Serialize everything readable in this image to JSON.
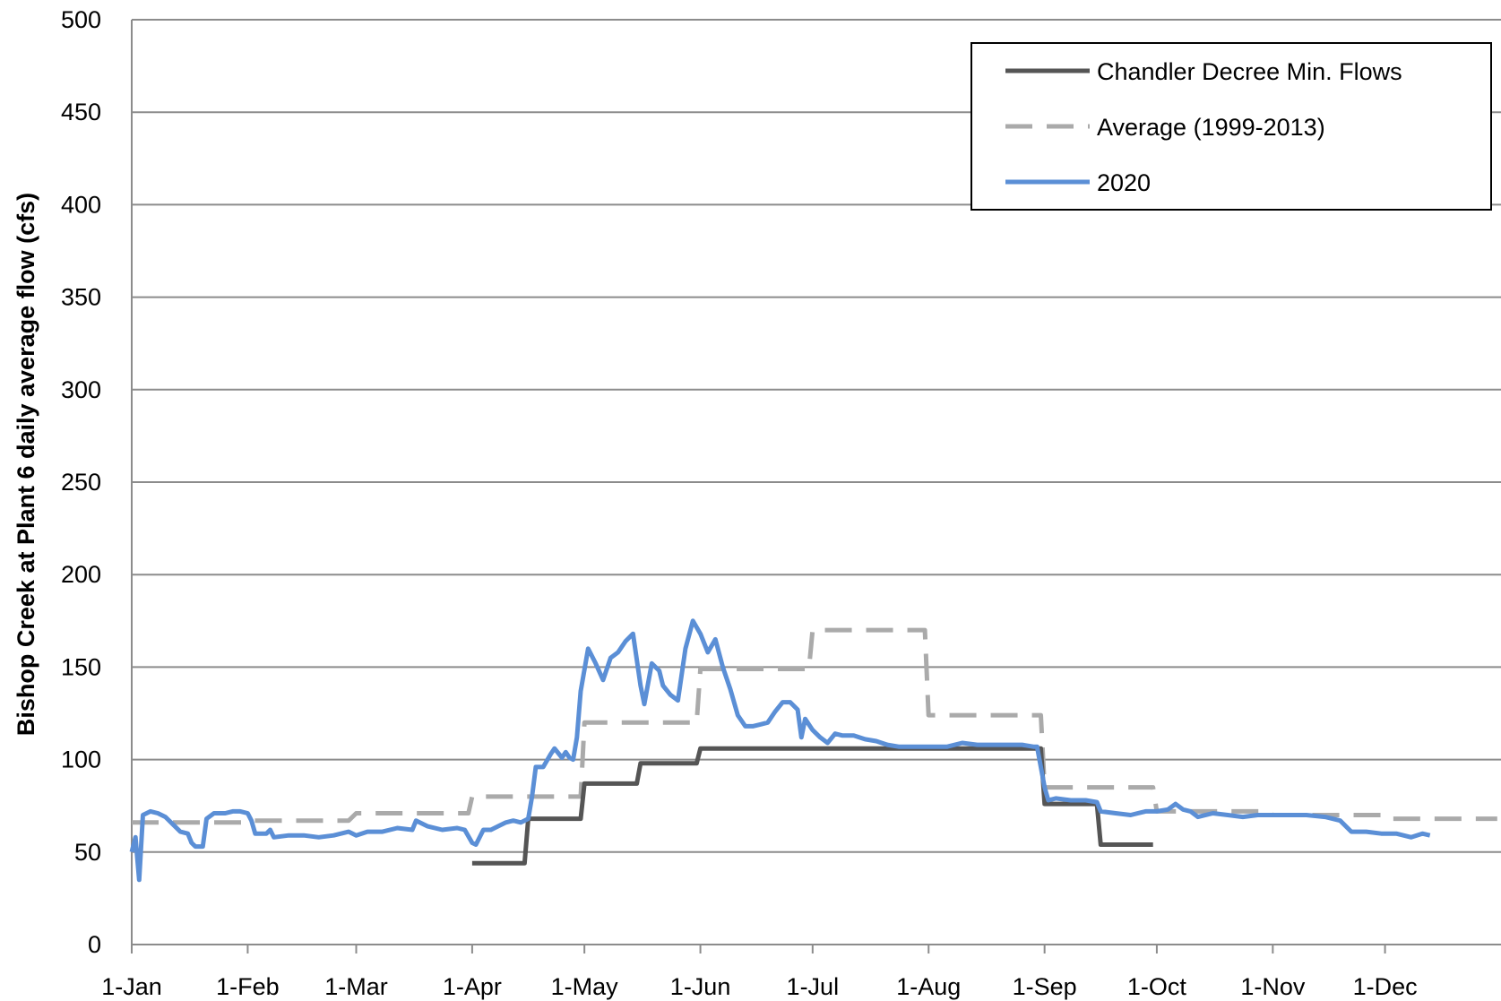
{
  "chart_data": {
    "type": "line",
    "title": "",
    "xlabel": "",
    "ylabel": "Bishop Creek at Plant 6 daily average flow (cfs)",
    "ylim": [
      0,
      500
    ],
    "yticks": [
      0,
      50,
      100,
      150,
      200,
      250,
      300,
      350,
      400,
      450,
      500
    ],
    "xlim": [
      "1-Jan",
      "31-Dec"
    ],
    "xtick_labels": [
      "1-Jan",
      "1-Feb",
      "1-Mar",
      "1-Apr",
      "1-May",
      "1-Jun",
      "1-Jul",
      "1-Aug",
      "1-Sep",
      "1-Oct",
      "1-Nov",
      "1-Dec"
    ],
    "grid": "horizontal",
    "legend_position": "top-right",
    "series": [
      {
        "name": "Chandler Decree Min. Flows",
        "color": "#555555",
        "style": "solid",
        "points": [
          [
            "1-Apr",
            44
          ],
          [
            "15-Apr",
            44
          ],
          [
            "16-Apr",
            68
          ],
          [
            "30-Apr",
            68
          ],
          [
            "1-May",
            87
          ],
          [
            "15-May",
            87
          ],
          [
            "16-May",
            98
          ],
          [
            "31-May",
            98
          ],
          [
            "1-Jun",
            106
          ],
          [
            "31-Aug",
            106
          ],
          [
            "1-Sep",
            76
          ],
          [
            "15-Sep",
            76
          ],
          [
            "16-Sep",
            54
          ],
          [
            "30-Sep",
            54
          ]
        ]
      },
      {
        "name": "Average (1999-2013)",
        "color": "#aaaaaa",
        "style": "dashed",
        "points": [
          [
            "1-Jan",
            66
          ],
          [
            "31-Jan",
            66
          ],
          [
            "1-Feb",
            67
          ],
          [
            "28-Feb",
            67
          ],
          [
            "1-Mar",
            71
          ],
          [
            "31-Mar",
            71
          ],
          [
            "1-Apr",
            80
          ],
          [
            "30-Apr",
            80
          ],
          [
            "1-May",
            120
          ],
          [
            "31-May",
            120
          ],
          [
            "1-Jun",
            149
          ],
          [
            "30-Jun",
            149
          ],
          [
            "1-Jul",
            170
          ],
          [
            "31-Jul",
            170
          ],
          [
            "1-Aug",
            124
          ],
          [
            "31-Aug",
            124
          ],
          [
            "1-Sep",
            85
          ],
          [
            "30-Sep",
            85
          ],
          [
            "1-Oct",
            72
          ],
          [
            "31-Oct",
            72
          ],
          [
            "1-Nov",
            70
          ],
          [
            "30-Nov",
            70
          ],
          [
            "1-Dec",
            68
          ],
          [
            "31-Dec",
            68
          ]
        ]
      },
      {
        "name": "2020",
        "color": "#5b8fd6",
        "style": "solid",
        "points": [
          [
            "1-Jan",
            50
          ],
          [
            "2-Jan",
            58
          ],
          [
            "3-Jan",
            35
          ],
          [
            "4-Jan",
            70
          ],
          [
            "6-Jan",
            72
          ],
          [
            "8-Jan",
            71
          ],
          [
            "10-Jan",
            69
          ],
          [
            "12-Jan",
            65
          ],
          [
            "14-Jan",
            61
          ],
          [
            "16-Jan",
            60
          ],
          [
            "17-Jan",
            55
          ],
          [
            "18-Jan",
            53
          ],
          [
            "20-Jan",
            53
          ],
          [
            "21-Jan",
            68
          ],
          [
            "23-Jan",
            71
          ],
          [
            "26-Jan",
            71
          ],
          [
            "28-Jan",
            72
          ],
          [
            "30-Jan",
            72
          ],
          [
            "1-Feb",
            71
          ],
          [
            "2-Feb",
            67
          ],
          [
            "3-Feb",
            60
          ],
          [
            "6-Feb",
            60
          ],
          [
            "7-Feb",
            62
          ],
          [
            "8-Feb",
            58
          ],
          [
            "12-Feb",
            59
          ],
          [
            "16-Feb",
            59
          ],
          [
            "20-Feb",
            58
          ],
          [
            "24-Feb",
            59
          ],
          [
            "28-Feb",
            61
          ],
          [
            "1-Mar",
            59
          ],
          [
            "4-Mar",
            61
          ],
          [
            "8-Mar",
            61
          ],
          [
            "12-Mar",
            63
          ],
          [
            "16-Mar",
            62
          ],
          [
            "17-Mar",
            67
          ],
          [
            "20-Mar",
            64
          ],
          [
            "24-Mar",
            62
          ],
          [
            "28-Mar",
            63
          ],
          [
            "30-Mar",
            62
          ],
          [
            "1-Apr",
            55
          ],
          [
            "2-Apr",
            54
          ],
          [
            "4-Apr",
            62
          ],
          [
            "6-Apr",
            62
          ],
          [
            "8-Apr",
            64
          ],
          [
            "10-Apr",
            66
          ],
          [
            "12-Apr",
            67
          ],
          [
            "14-Apr",
            66
          ],
          [
            "16-Apr",
            68
          ],
          [
            "17-Apr",
            80
          ],
          [
            "18-Apr",
            96
          ],
          [
            "20-Apr",
            96
          ],
          [
            "22-Apr",
            103
          ],
          [
            "23-Apr",
            106
          ],
          [
            "25-Apr",
            101
          ],
          [
            "26-Apr",
            104
          ],
          [
            "27-Apr",
            101
          ],
          [
            "28-Apr",
            100
          ],
          [
            "29-Apr",
            112
          ],
          [
            "30-Apr",
            137
          ],
          [
            "2-May",
            160
          ],
          [
            "4-May",
            152
          ],
          [
            "6-May",
            143
          ],
          [
            "8-May",
            155
          ],
          [
            "10-May",
            158
          ],
          [
            "12-May",
            164
          ],
          [
            "14-May",
            168
          ],
          [
            "16-May",
            140
          ],
          [
            "17-May",
            130
          ],
          [
            "19-May",
            152
          ],
          [
            "21-May",
            148
          ],
          [
            "22-May",
            140
          ],
          [
            "24-May",
            135
          ],
          [
            "26-May",
            132
          ],
          [
            "28-May",
            160
          ],
          [
            "30-May",
            175
          ],
          [
            "1-Jun",
            168
          ],
          [
            "3-Jun",
            158
          ],
          [
            "5-Jun",
            165
          ],
          [
            "7-Jun",
            150
          ],
          [
            "9-Jun",
            138
          ],
          [
            "11-Jun",
            124
          ],
          [
            "13-Jun",
            118
          ],
          [
            "15-Jun",
            118
          ],
          [
            "17-Jun",
            119
          ],
          [
            "19-Jun",
            120
          ],
          [
            "21-Jun",
            126
          ],
          [
            "23-Jun",
            131
          ],
          [
            "25-Jun",
            131
          ],
          [
            "27-Jun",
            127
          ],
          [
            "28-Jun",
            112
          ],
          [
            "29-Jun",
            122
          ],
          [
            "1-Jul",
            116
          ],
          [
            "3-Jul",
            112
          ],
          [
            "5-Jul",
            109
          ],
          [
            "7-Jul",
            114
          ],
          [
            "9-Jul",
            113
          ],
          [
            "12-Jul",
            113
          ],
          [
            "15-Jul",
            111
          ],
          [
            "18-Jul",
            110
          ],
          [
            "21-Jul",
            108
          ],
          [
            "24-Jul",
            107
          ],
          [
            "27-Jul",
            107
          ],
          [
            "30-Jul",
            107
          ],
          [
            "2-Aug",
            107
          ],
          [
            "6-Aug",
            107
          ],
          [
            "10-Aug",
            109
          ],
          [
            "14-Aug",
            108
          ],
          [
            "18-Aug",
            108
          ],
          [
            "22-Aug",
            108
          ],
          [
            "26-Aug",
            108
          ],
          [
            "29-Aug",
            107
          ],
          [
            "30-Aug",
            107
          ],
          [
            "31-Aug",
            96
          ],
          [
            "1-Sep",
            85
          ],
          [
            "2-Sep",
            78
          ],
          [
            "4-Sep",
            79
          ],
          [
            "8-Sep",
            78
          ],
          [
            "12-Sep",
            78
          ],
          [
            "15-Sep",
            77
          ],
          [
            "16-Sep",
            72
          ],
          [
            "20-Sep",
            71
          ],
          [
            "24-Sep",
            70
          ],
          [
            "28-Sep",
            72
          ],
          [
            "1-Oct",
            72
          ],
          [
            "4-Oct",
            73
          ],
          [
            "6-Oct",
            76
          ],
          [
            "8-Oct",
            73
          ],
          [
            "10-Oct",
            72
          ],
          [
            "12-Oct",
            69
          ],
          [
            "16-Oct",
            71
          ],
          [
            "20-Oct",
            70
          ],
          [
            "24-Oct",
            69
          ],
          [
            "28-Oct",
            70
          ],
          [
            "1-Nov",
            70
          ],
          [
            "5-Nov",
            70
          ],
          [
            "10-Nov",
            70
          ],
          [
            "15-Nov",
            69
          ],
          [
            "19-Nov",
            67
          ],
          [
            "22-Nov",
            61
          ],
          [
            "26-Nov",
            61
          ],
          [
            "30-Nov",
            60
          ],
          [
            "4-Dec",
            60
          ],
          [
            "8-Dec",
            58
          ],
          [
            "11-Dec",
            60
          ],
          [
            "13-Dec",
            59
          ]
        ]
      }
    ]
  }
}
